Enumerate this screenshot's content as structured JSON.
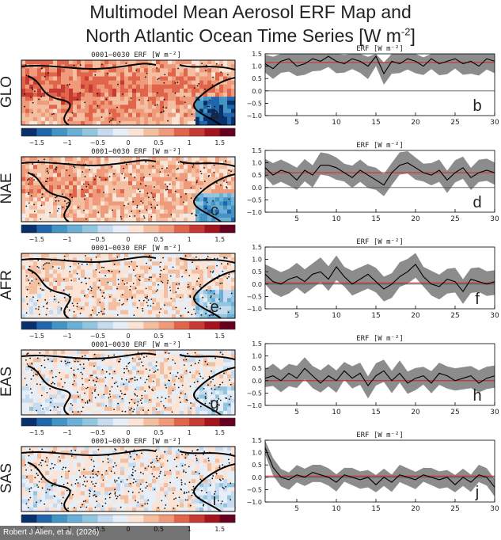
{
  "figure": {
    "title_line1": "Multimodel Mean Aerosol ERF Map and",
    "title_line2": "North Atlantic Ocean Time Series [W m",
    "title_sup": "-2",
    "title_end": "]",
    "credit": "Robert J Allen, et al. (2026)"
  },
  "colors": {
    "colorbar": [
      "#08306b",
      "#2166ac",
      "#4393c3",
      "#6baed6",
      "#92c5de",
      "#c6dbef",
      "#e6eef7",
      "#fbe4d5",
      "#f4bfa0",
      "#ef9a7a",
      "#e0654a",
      "#c53a32",
      "#a3141f",
      "#67001f"
    ],
    "shade": "#8c8c8c",
    "mean_line": "#d62728"
  },
  "map_panels": [
    {
      "row_label": "GLO",
      "panel_title": "0001−0030 ERF [W m⁻²]",
      "letter": "a",
      "pattern": 0.85
    },
    {
      "row_label": "NAE",
      "panel_title": "0001−0030 ERF [W m⁻²]",
      "letter": "c",
      "pattern": 0.55
    },
    {
      "row_label": "AFR",
      "panel_title": "0001−0030 ERF [W m⁻²]",
      "letter": "e",
      "pattern": 0.2
    },
    {
      "row_label": "EAS",
      "panel_title": "0001−0030 ERF [W m⁻²]",
      "letter": "g",
      "pattern": 0.05
    },
    {
      "row_label": "SAS",
      "panel_title": "0001−0030 ERF [W m⁻²]",
      "letter": "i",
      "pattern": 0.03
    }
  ],
  "colorbar_ticks": [
    "−1.5",
    "−1",
    "−0.5",
    "0",
    "0.5",
    "1",
    "1.5"
  ],
  "chart_data": [
    {
      "type": "line",
      "letter": "b",
      "title": "ERF [W m⁻²]",
      "ylim": [
        -1,
        1.5
      ],
      "mean": 1.15,
      "yticks": [
        "1.5",
        "1.0",
        "0.5",
        "0.0",
        "−0.5",
        "−1.0"
      ],
      "xticks": [
        "5",
        "10",
        "15",
        "20",
        "25",
        "30"
      ],
      "x": [
        1,
        2,
        3,
        4,
        5,
        6,
        7,
        8,
        9,
        10,
        11,
        12,
        13,
        14,
        15,
        16,
        17,
        18,
        19,
        20,
        21,
        22,
        23,
        24,
        25,
        26,
        27,
        28,
        29,
        30
      ],
      "values": [
        1.1,
        0.9,
        1.2,
        1.3,
        1.0,
        1.1,
        1.3,
        1.2,
        1.4,
        1.2,
        1.1,
        1.3,
        1.2,
        1.0,
        1.4,
        0.7,
        1.2,
        1.1,
        1.3,
        1.2,
        1.0,
        1.3,
        1.1,
        1.2,
        1.3,
        1.1,
        1.2,
        1.0,
        1.3,
        1.2
      ],
      "spread": 0.45
    },
    {
      "type": "line",
      "letter": "d",
      "title": "ERF [W m⁻²]",
      "ylim": [
        -1,
        1.5
      ],
      "mean": 0.6,
      "yticks": [
        "1.5",
        "1.0",
        "0.5",
        "0.0",
        "−0.5",
        "−1.0"
      ],
      "xticks": [
        "5",
        "10",
        "15",
        "20",
        "25",
        "30"
      ],
      "x": [
        1,
        2,
        3,
        4,
        5,
        6,
        7,
        8,
        9,
        10,
        11,
        12,
        13,
        14,
        15,
        16,
        17,
        18,
        19,
        20,
        21,
        22,
        23,
        24,
        25,
        26,
        27,
        28,
        29,
        30
      ],
      "values": [
        0.8,
        0.5,
        0.7,
        0.6,
        0.3,
        0.7,
        0.5,
        0.9,
        0.9,
        0.8,
        0.6,
        0.4,
        0.7,
        0.5,
        0.3,
        0.1,
        0.6,
        0.9,
        1.0,
        0.8,
        0.6,
        0.5,
        0.7,
        0.3,
        0.6,
        0.8,
        0.4,
        0.6,
        0.7,
        0.6
      ],
      "spread": 0.45
    },
    {
      "type": "line",
      "letter": "f",
      "title": "ERF [W m⁻²]",
      "ylim": [
        -1,
        1.5
      ],
      "mean": 0.05,
      "yticks": [
        "1.5",
        "1.0",
        "0.5",
        "0.0",
        "−0.5",
        "−1.0"
      ],
      "xticks": [
        "5",
        "10",
        "15",
        "20",
        "25",
        "30"
      ],
      "x": [
        1,
        2,
        3,
        4,
        5,
        6,
        7,
        8,
        9,
        10,
        11,
        12,
        13,
        14,
        15,
        16,
        17,
        18,
        19,
        20,
        21,
        22,
        23,
        24,
        25,
        26,
        27,
        28,
        29,
        30
      ],
      "values": [
        0.4,
        0.1,
        0.0,
        0.2,
        0.3,
        0.1,
        0.4,
        0.5,
        0.2,
        0.7,
        0.3,
        0.0,
        0.2,
        0.4,
        0.1,
        -0.2,
        0.0,
        0.3,
        0.5,
        0.8,
        0.3,
        0.0,
        -0.1,
        0.2,
        0.1,
        -0.3,
        0.2,
        0.1,
        0.0,
        0.1
      ],
      "spread": 0.5
    },
    {
      "type": "line",
      "letter": "h",
      "title": "ERF [W m⁻²]",
      "ylim": [
        -1,
        1.5
      ],
      "mean": 0.0,
      "yticks": [
        "1.5",
        "1.0",
        "0.5",
        "0.0",
        "−0.5",
        "−1.0"
      ],
      "xticks": [
        "5",
        "10",
        "15",
        "20",
        "25",
        "30"
      ],
      "x": [
        1,
        2,
        3,
        4,
        5,
        6,
        7,
        8,
        9,
        10,
        11,
        12,
        13,
        14,
        15,
        16,
        17,
        18,
        19,
        20,
        21,
        22,
        23,
        24,
        25,
        26,
        27,
        28,
        29,
        30
      ],
      "values": [
        0.1,
        0.2,
        0.0,
        0.3,
        0.1,
        0.5,
        0.2,
        -0.1,
        0.2,
        0.0,
        0.4,
        0.1,
        0.3,
        -0.2,
        0.2,
        0.4,
        0.0,
        0.3,
        -0.1,
        0.1,
        0.2,
        -0.1,
        0.3,
        0.2,
        0.0,
        0.1,
        0.2,
        -0.1,
        0.1,
        0.2
      ],
      "spread": 0.45
    },
    {
      "type": "line",
      "letter": "j",
      "title": "ERF [W m⁻²]",
      "ylim": [
        -1,
        1.5
      ],
      "mean": 0.05,
      "yticks": [
        "1.5",
        "1.0",
        "0.5",
        "0.0",
        "−0.5",
        "−1.0"
      ],
      "xticks": [
        "5",
        "10",
        "15",
        "20",
        "25",
        "30"
      ],
      "x": [
        1,
        2,
        3,
        4,
        5,
        6,
        7,
        8,
        9,
        10,
        11,
        12,
        13,
        14,
        15,
        16,
        17,
        18,
        19,
        20,
        21,
        22,
        23,
        24,
        25,
        26,
        27,
        28,
        29,
        30
      ],
      "values": [
        1.2,
        0.4,
        0.0,
        -0.1,
        0.1,
        0.0,
        0.2,
        0.1,
        0.0,
        -0.2,
        0.1,
        0.0,
        -0.1,
        0.0,
        -0.3,
        0.0,
        -0.2,
        0.1,
        0.0,
        -0.1,
        0.1,
        0.0,
        -0.1,
        0.0,
        -0.3,
        0.0,
        -0.2,
        0.1,
        0.0,
        -0.4
      ],
      "spread": 0.35
    }
  ]
}
